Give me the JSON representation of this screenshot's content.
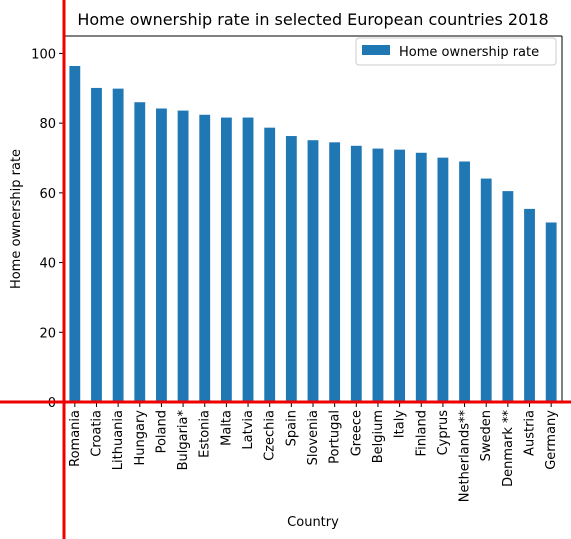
{
  "chart_data": {
    "type": "bar",
    "title": "Home ownership rate in selected European countries 2018",
    "xlabel": "Country",
    "ylabel": "Home ownership rate",
    "legend": {
      "label": "Home ownership rate",
      "placement": "top-right"
    },
    "bar_color": "#1f77b4",
    "ylim": [
      0,
      105
    ],
    "yticks": [
      0,
      20,
      40,
      60,
      80,
      100
    ],
    "grid": false,
    "categories": [
      "Romania",
      "Croatia",
      "Lithuania",
      "Hungary",
      "Poland",
      "Bulgaria*",
      "Estonia",
      "Malta",
      "Latvia",
      "Czechia",
      "Spain",
      "Slovenia",
      "Portugal",
      "Greece",
      "Belgium",
      "Italy",
      "Finland",
      "Cyprus",
      "Netherlands**",
      "Sweden",
      "Denmark **",
      "Austria",
      "Germany"
    ],
    "values": [
      96.4,
      90.1,
      89.9,
      86.0,
      84.2,
      83.6,
      82.4,
      81.6,
      81.6,
      78.7,
      76.3,
      75.1,
      74.5,
      73.5,
      72.7,
      72.4,
      71.5,
      70.1,
      69.0,
      64.1,
      60.5,
      55.4,
      51.5
    ]
  }
}
